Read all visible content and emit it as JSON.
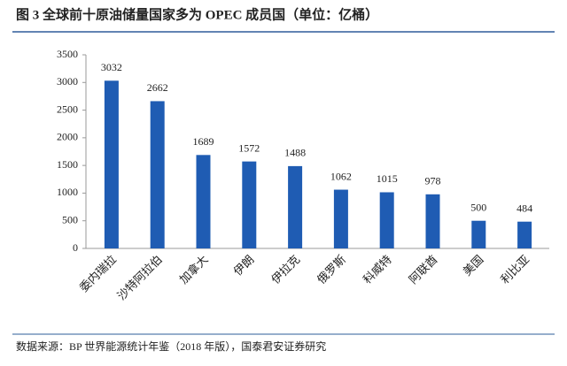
{
  "chart_data": {
    "type": "bar",
    "title": "图 3 全球前十原油储量国家多为 OPEC 成员国（单位：亿桶）",
    "source": "数据来源：BP 世界能源统计年鉴（2018 年版），国泰君安证券研究",
    "categories": [
      "委内瑞拉",
      "沙特阿拉伯",
      "加拿大",
      "伊朗",
      "伊拉克",
      "俄罗斯",
      "科威特",
      "阿联酋",
      "美国",
      "利比亚"
    ],
    "values": [
      3032,
      2662,
      1689,
      1572,
      1488,
      1062,
      1015,
      978,
      500,
      484
    ],
    "color": "#1f5cb3",
    "ylim": [
      0,
      3500
    ],
    "yticks": [
      0,
      500,
      1000,
      1500,
      2000,
      2500,
      3000,
      3500
    ],
    "grid": false
  }
}
